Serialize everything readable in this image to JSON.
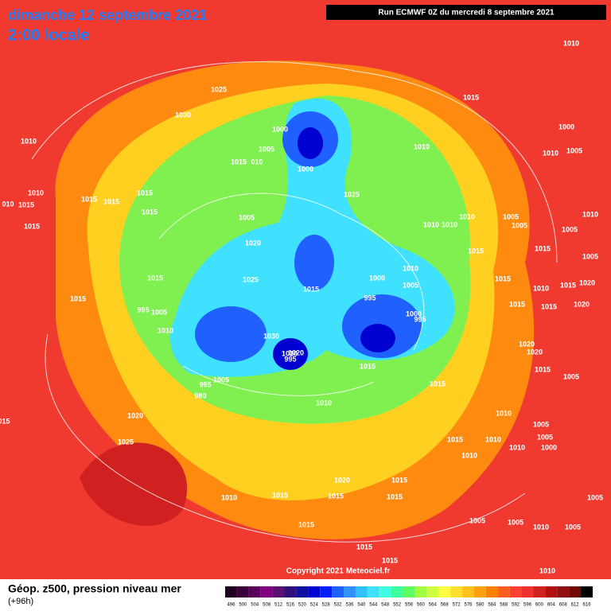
{
  "header": {
    "date": "dimanche 12 septembre 2021",
    "time": "2:00 locale",
    "run": "Run ECMWF 0Z du mercredi 8 septembre 2021"
  },
  "copyright": "Copyright 2021 Meteociel.fr",
  "legend": {
    "title": "Géop. z500, pression niveau mer",
    "lead": "(+96h)",
    "scale": [
      496,
      500,
      504,
      508,
      512,
      516,
      520,
      524,
      528,
      532,
      536,
      540,
      544,
      548,
      552,
      556,
      560,
      564,
      568,
      572,
      576,
      580,
      584,
      588,
      592,
      596,
      600,
      604,
      608,
      612,
      616
    ],
    "colors": [
      "#200020",
      "#3c003c",
      "#5a005a",
      "#800080",
      "#5c1070",
      "#30107a",
      "#1010a0",
      "#0000d0",
      "#0020ff",
      "#2060ff",
      "#3090ff",
      "#30c0ff",
      "#40e0ff",
      "#40ffe0",
      "#40ffa0",
      "#60ff60",
      "#a0ff40",
      "#d0ff40",
      "#ffff40",
      "#ffe030",
      "#ffc020",
      "#ffa010",
      "#ff8000",
      "#ff6020",
      "#ff4030",
      "#f03030",
      "#d02020",
      "#b01010",
      "#901010",
      "#700808",
      "#000000"
    ]
  },
  "isobar_labels": [
    "1010",
    "1025",
    "1015",
    "1030",
    "1000",
    "1000",
    "1010",
    "1005",
    "1010",
    "1010",
    "1005",
    "1015",
    "010",
    "1000",
    "1010",
    "010",
    "1015",
    "1015",
    "1015",
    "1025",
    "1015",
    "1015",
    "1005",
    "1010",
    "1005",
    "1010",
    "1015",
    "1010",
    "1010",
    "1005",
    "1005",
    "1020",
    "1015",
    "1015",
    "1005",
    "1010",
    "1025",
    "1015",
    "1000",
    "1005",
    "1015",
    "1020",
    "1015",
    "1010",
    "1015",
    "1015",
    "995",
    "995",
    "1005",
    "1015",
    "1015",
    "1020",
    "1000",
    "995",
    "1010",
    "1030",
    "1010",
    "1020",
    "995",
    "1020",
    "1020",
    "1015",
    "1015",
    "1005",
    "1005",
    "995",
    "1015",
    "980",
    "1010",
    "015",
    "1020",
    "1010",
    "1005",
    "1015",
    "1010",
    "1005",
    "1025",
    "1010",
    "1000",
    "1010",
    "1020",
    "1015",
    "1015",
    "1010",
    "1015",
    "1015",
    "1005",
    "1005",
    "1005",
    "1015",
    "1010",
    "1005",
    "1015",
    "1015",
    "1010"
  ]
}
